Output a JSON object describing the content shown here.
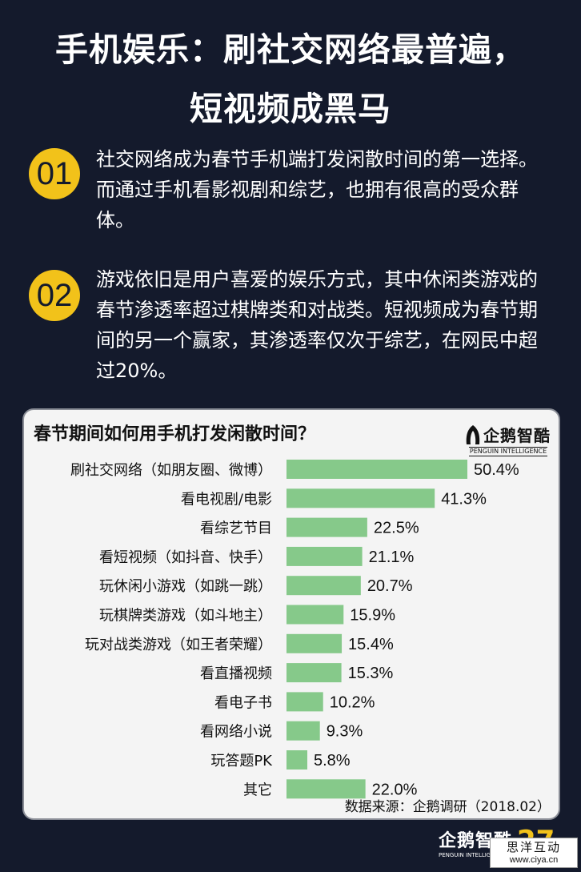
{
  "header": {
    "title_line1": "手机娱乐：刷社交网络最普遍，",
    "title_line2": "短视频成黑马"
  },
  "points": [
    {
      "num": "01",
      "text": "社交网络成为春节手机端打发闲散时间的第一选择。而通过手机看影视剧和综艺，也拥有很高的受众群体。"
    },
    {
      "num": "02",
      "text": "游戏依旧是用户喜爱的娱乐方式，其中休闲类游戏的春节渗透率超过棋牌类和对战类。短视频成为春节期间的另一个赢家，其渗透率仅次于综艺，在网民中超过20%。"
    }
  ],
  "logo": {
    "name": "企鹅智酷",
    "sub": "PENGUIN INTELLIGENCE"
  },
  "footer": {
    "logo_name": "企鹅智酷",
    "logo_sub": "PENGUIN INTELLIGENCE",
    "page": "27"
  },
  "watermark": {
    "line1": "思洋互动",
    "line2": "www.ciya.cn"
  },
  "colors": {
    "background": "#141a2c",
    "accent": "#f2c21a",
    "bar": "#86c98a",
    "panel": "#f4f4f4"
  },
  "chart_data": {
    "type": "bar",
    "orientation": "horizontal",
    "title": "春节期间如何用手机打发闲散时间？",
    "categories": [
      "刷社交网络（如朋友圈、微博）",
      "看电视剧/电影",
      "看综艺节目",
      "看短视频（如抖音、快手）",
      "玩休闲小游戏（如跳一跳）",
      "玩棋牌类游戏（如斗地主）",
      "玩对战类游戏（如王者荣耀）",
      "看直播视频",
      "看电子书",
      "看网络小说",
      "玩答题PK",
      "其它"
    ],
    "values": [
      50.4,
      41.3,
      22.5,
      21.1,
      20.7,
      15.9,
      15.4,
      15.3,
      10.2,
      9.3,
      5.8,
      22.0
    ],
    "value_labels": [
      "50.4%",
      "41.3%",
      "22.5%",
      "21.1%",
      "20.7%",
      "15.9%",
      "15.4%",
      "15.3%",
      "10.2%",
      "9.3%",
      "5.8%",
      "22.0%"
    ],
    "unit": "%",
    "source": "数据来源：企鹅调研（2018.02）",
    "grid": false
  }
}
